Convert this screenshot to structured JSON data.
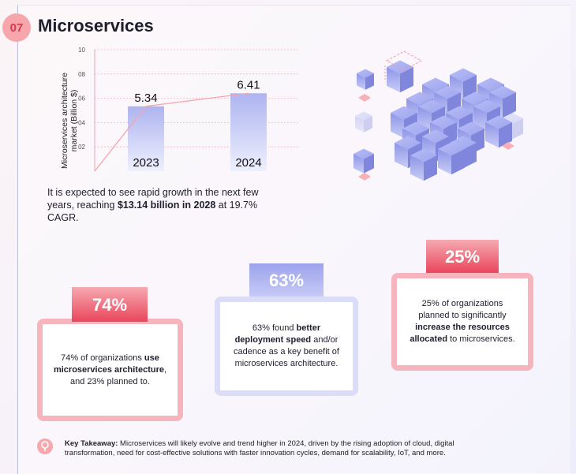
{
  "header": {
    "number": "07",
    "title": "Microservices"
  },
  "chart_data": {
    "type": "bar",
    "categories": [
      "2023",
      "2024"
    ],
    "values": [
      5.34,
      6.41
    ],
    "ylabel": "Microservices architecture market (Billion $)",
    "yticks": [
      "10",
      "08",
      "06",
      "04",
      "02"
    ],
    "ylim": [
      0,
      10
    ],
    "grid": true,
    "bar_color": "#aeb4f0",
    "line_color": "#f3a6ae"
  },
  "description": {
    "part1": "It is expected to see rapid growth in the next few years, reaching ",
    "bold": "$13.14 billion in 2028",
    "part2": " at 19.7% CAGR."
  },
  "stats": [
    {
      "percent": "74%",
      "pre": "74% of organizations ",
      "bold": "use microservices architecture",
      "post": ", and 23% planned to.",
      "color": "#ee5b6d"
    },
    {
      "percent": "63%",
      "pre": "63% found ",
      "bold": "better deployment speed",
      "post": " and/or cadence as a key benefit of microservices architecture.",
      "color": "#aeb4f0"
    },
    {
      "percent": "25%",
      "pre": "25% of organizations planned to significantly ",
      "bold": "increase the resources allocated",
      "post": " to microservices.",
      "color": "#ee5b6d"
    }
  ],
  "takeaway": {
    "label": "Key Takeaway:",
    "text": " Microservices will likely evolve and trend higher in 2024, driven by the rising adoption of cloud, digital transformation, need for cost-effective solutions with faster innovation cycles, demand for scalability, IoT, and more."
  }
}
